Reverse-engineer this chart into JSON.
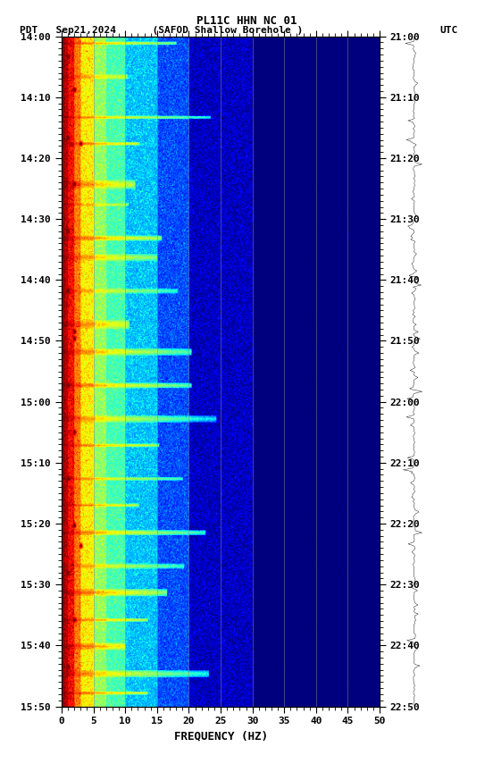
{
  "title_line1": "PL11C HHN NC 01",
  "title_line2_left": "PDT   Sep21,2024      (SAFOD Shallow Borehole )",
  "title_line2_right": "UTC",
  "left_time_labels": [
    "14:00",
    "14:10",
    "14:20",
    "14:30",
    "14:40",
    "14:50",
    "15:00",
    "15:10",
    "15:20",
    "15:30",
    "15:40",
    "15:50"
  ],
  "right_time_labels": [
    "21:00",
    "21:10",
    "21:20",
    "21:30",
    "21:40",
    "21:50",
    "22:00",
    "22:10",
    "22:20",
    "22:30",
    "22:40",
    "22:50"
  ],
  "freq_min": 0,
  "freq_max": 50,
  "xlabel": "FREQUENCY (HZ)",
  "colormap": "jet",
  "noise_seed": 42,
  "n_time": 660,
  "n_freq": 500
}
